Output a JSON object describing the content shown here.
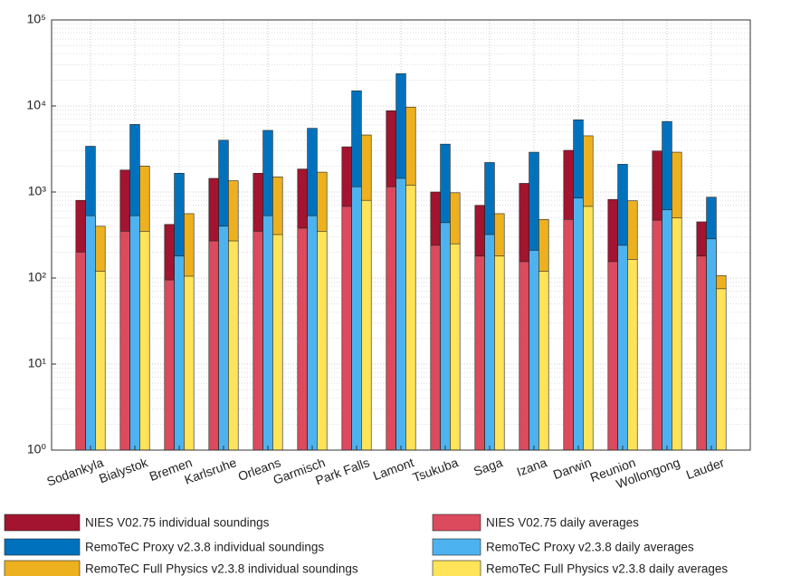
{
  "chart_data": {
    "type": "bar",
    "log_scale": true,
    "grid": true,
    "minor_grid": true,
    "categories": [
      "Sodankyla",
      "Bialystok",
      "Bremen",
      "Karlsruhe",
      "Orleans",
      "Garmisch",
      "Park Falls",
      "Lamont",
      "Tsukuba",
      "Saga",
      "Izana",
      "Darwin",
      "Reunion",
      "Wollongong",
      "Lauder"
    ],
    "series": [
      {
        "name": "NIES V02.75 individual soundings",
        "color": "#a2142f",
        "values": [
          800,
          1800,
          420,
          1440,
          1650,
          1850,
          3350,
          8800,
          1000,
          700,
          1260,
          3050,
          820,
          3000,
          450
        ]
      },
      {
        "name": "NIES V02.75 daily averages",
        "color": "#dc4a5e",
        "values": [
          200,
          350,
          95,
          270,
          350,
          380,
          680,
          1150,
          240,
          180,
          155,
          480,
          155,
          470,
          180
        ]
      },
      {
        "name": "RemoTeC Proxy v2.3.8 individual soundings",
        "color": "#0072bd",
        "values": [
          3400,
          6100,
          1650,
          4000,
          5200,
          5500,
          15000,
          23700,
          3600,
          2200,
          2900,
          6900,
          2100,
          6600,
          870
        ]
      },
      {
        "name": "RemoTeC Proxy v2.3.8 daily averages",
        "color": "#4db3f0",
        "values": [
          530,
          530,
          180,
          400,
          530,
          530,
          1150,
          1440,
          440,
          320,
          210,
          850,
          240,
          620,
          285
        ]
      },
      {
        "name": "RemoTeC Full Physics v2.3.8 individual soundings",
        "color": "#edb120",
        "values": [
          400,
          2000,
          560,
          1350,
          1500,
          1700,
          4600,
          9700,
          980,
          560,
          480,
          4500,
          790,
          2900,
          107
        ]
      },
      {
        "name": "RemoTeC Full Physics v2.3.8 daily averages",
        "color": "#ffe359",
        "values": [
          120,
          350,
          105,
          270,
          320,
          350,
          800,
          1200,
          250,
          180,
          120,
          680,
          165,
          500,
          75
        ]
      }
    ],
    "ylim": [
      1,
      100000
    ],
    "yticks": [
      {
        "value": 1,
        "label": "10⁰"
      },
      {
        "value": 10,
        "label": "10¹"
      },
      {
        "value": 100,
        "label": "10²"
      },
      {
        "value": 1000,
        "label": "10³"
      },
      {
        "value": 10000,
        "label": "10⁴"
      },
      {
        "value": 100000,
        "label": "10⁵"
      }
    ]
  }
}
